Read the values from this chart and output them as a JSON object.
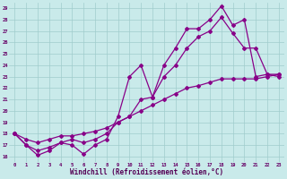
{
  "xlabel": "Windchill (Refroidissement éolien,°C)",
  "background_color": "#c9eaea",
  "line_color": "#880088",
  "grid_color": "#a0cccc",
  "ylim": [
    15.5,
    29.5
  ],
  "xlim": [
    -0.5,
    23.5
  ],
  "yticks": [
    16,
    17,
    18,
    19,
    20,
    21,
    22,
    23,
    24,
    25,
    26,
    27,
    28,
    29
  ],
  "xticks": [
    0,
    1,
    2,
    3,
    4,
    5,
    6,
    7,
    8,
    9,
    10,
    11,
    12,
    13,
    14,
    15,
    16,
    17,
    18,
    19,
    20,
    21,
    22,
    23
  ],
  "series": [
    {
      "x": [
        0,
        1,
        2,
        3,
        4,
        5,
        6,
        7,
        8,
        9,
        10,
        11,
        12,
        13,
        14,
        15,
        16,
        17,
        18,
        19,
        20,
        21,
        22,
        23
      ],
      "y": [
        18.0,
        17.0,
        16.1,
        16.5,
        17.2,
        17.0,
        16.2,
        17.0,
        17.5,
        19.5,
        23.0,
        24.0,
        21.2,
        24.0,
        25.5,
        27.2,
        27.2,
        28.0,
        29.2,
        27.5,
        28.0,
        23.0,
        23.2,
        23.2
      ]
    },
    {
      "x": [
        0,
        1,
        2,
        3,
        4,
        5,
        6,
        7,
        8,
        9,
        10,
        11,
        12,
        13,
        14,
        15,
        16,
        17,
        18,
        19,
        20,
        21,
        22,
        23
      ],
      "y": [
        18.0,
        17.0,
        16.5,
        16.8,
        17.2,
        17.5,
        17.2,
        17.5,
        18.0,
        19.0,
        19.5,
        21.0,
        21.2,
        23.0,
        24.0,
        25.5,
        26.5,
        27.0,
        28.2,
        26.8,
        25.5,
        25.5,
        23.2,
        23.0
      ]
    },
    {
      "x": [
        0,
        1,
        2,
        3,
        4,
        5,
        6,
        7,
        8,
        9,
        10,
        11,
        12,
        13,
        14,
        15,
        16,
        17,
        18,
        19,
        20,
        21,
        22,
        23
      ],
      "y": [
        18.0,
        17.5,
        17.2,
        17.5,
        17.8,
        17.8,
        18.0,
        18.2,
        18.5,
        19.0,
        19.5,
        20.0,
        20.5,
        21.0,
        21.5,
        22.0,
        22.2,
        22.5,
        22.8,
        22.8,
        22.8,
        22.8,
        23.0,
        23.2
      ]
    }
  ]
}
